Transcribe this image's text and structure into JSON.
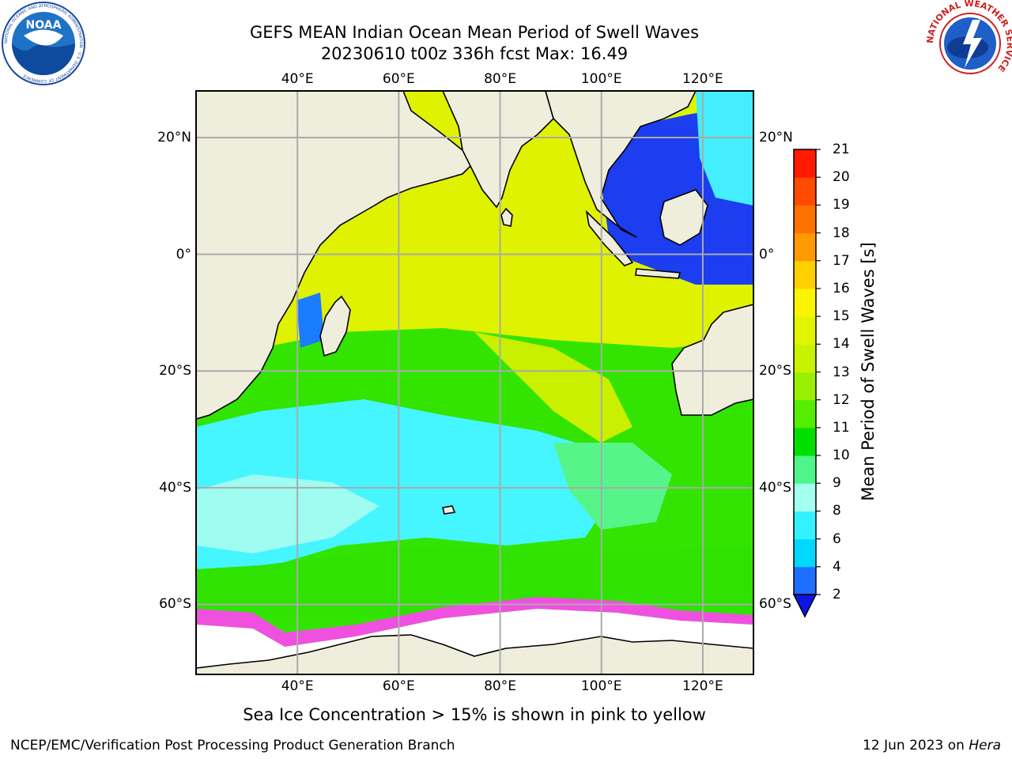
{
  "title": {
    "line1": "GEFS MEAN Indian Ocean Mean Period of Swell Waves",
    "line2": "20230610 t00z 336h fcst   Max: 16.49"
  },
  "map": {
    "lon_range": [
      20,
      130
    ],
    "lat_range": [
      -72,
      28
    ],
    "lon_ticks": [
      {
        "value": 40,
        "label": "40°E"
      },
      {
        "value": 60,
        "label": "60°E"
      },
      {
        "value": 80,
        "label": "80°E"
      },
      {
        "value": 100,
        "label": "100°E"
      },
      {
        "value": 120,
        "label": "120°E"
      }
    ],
    "lat_ticks": [
      {
        "value": 20,
        "label": "20°N"
      },
      {
        "value": 0,
        "label": "0°"
      },
      {
        "value": -20,
        "label": "20°S"
      },
      {
        "value": -40,
        "label": "40°S"
      },
      {
        "value": -60,
        "label": "60°S"
      }
    ],
    "land_color": "#efeddc",
    "ice_free_color": "#ffffff"
  },
  "colorbar": {
    "label": "Mean Period of Swell Waves [s]",
    "ticks": [
      "2",
      "4",
      "6",
      "8",
      "9",
      "10",
      "11",
      "12",
      "13",
      "14",
      "15",
      "16",
      "17",
      "18",
      "19",
      "20",
      "21"
    ],
    "colors": [
      "#1e6fff",
      "#00d8ff",
      "#33f2ff",
      "#a3fff0",
      "#4df58a",
      "#00e000",
      "#55ee00",
      "#99f000",
      "#c8f200",
      "#e2f400",
      "#fbf400",
      "#ffcf00",
      "#ff9a00",
      "#ff7200",
      "#ff4a00",
      "#ff1a00"
    ],
    "under_color": "#0b16e6"
  },
  "footnote": "Sea Ice Concentration > 15% is shown in pink to yellow",
  "credit": "NCEP/EMC/Verification Post Processing Product Generation Branch",
  "run_date": {
    "date": "12 Jun 2023 on",
    "host": "Hera"
  },
  "logos": {
    "noaa": {
      "name": "NOAA",
      "text": "NATIONAL OCEANIC AND ATMOSPHERIC ADMINISTRATION · U.S. DEPARTMENT OF COMMERCE"
    },
    "nws": {
      "text": "NATIONAL WEATHER SERVICE"
    }
  }
}
